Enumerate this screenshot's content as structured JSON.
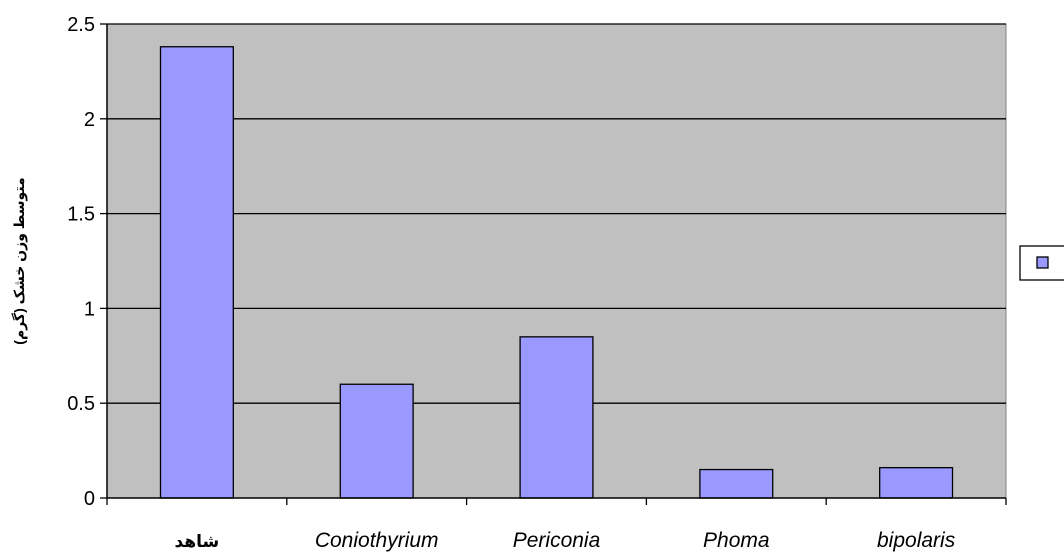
{
  "chart_data": {
    "type": "bar",
    "title": "",
    "xlabel": "",
    "ylabel": "متوسط وزن خشک (گرم)",
    "categories": [
      "شاهد",
      "Coniothyrium",
      "Periconia",
      "Phoma",
      "bipolaris"
    ],
    "series": [
      {
        "values": [
          2.38,
          0.6,
          0.85,
          0.15,
          0.16
        ]
      }
    ],
    "ylim": [
      0,
      2.5
    ],
    "yticks": [
      "0",
      "0.5",
      "1",
      "1.5",
      "2",
      "2.5"
    ],
    "ytick_values": [
      0,
      0.5,
      1,
      1.5,
      2,
      2.5
    ],
    "grid": true,
    "legend_position": "right",
    "colors": {
      "plot_area": "#c0c0c0",
      "bar_fill": "#9999ff",
      "bar_stroke": "#000000",
      "gridline": "#000000",
      "background": "#ffffff"
    }
  }
}
